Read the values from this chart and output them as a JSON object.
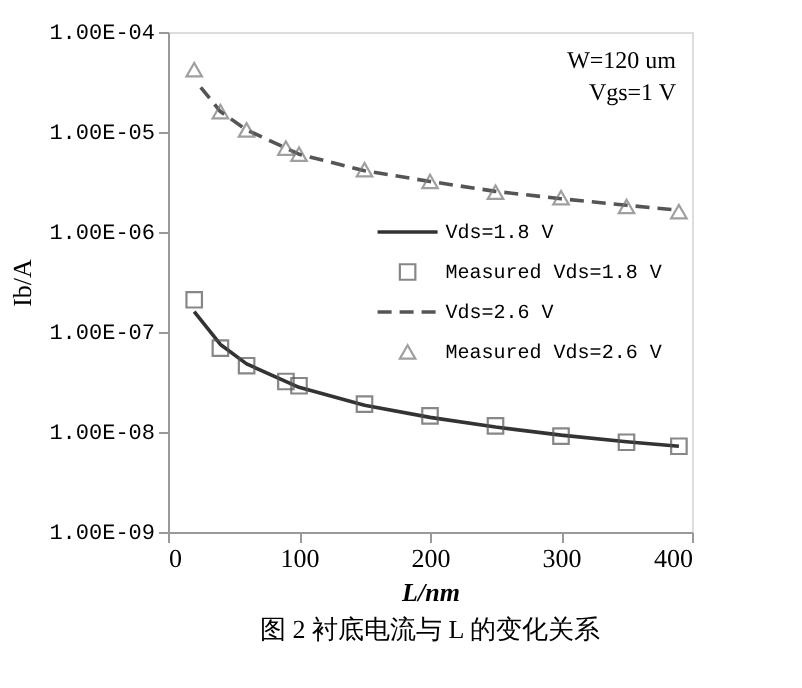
{
  "chart_data": {
    "type": "line",
    "xlabel": "L/nm",
    "ylabel": "Ib/A",
    "log": "y",
    "grid": false,
    "legend": "right",
    "xlim": [
      0,
      400
    ],
    "xticks": [
      0,
      100,
      200,
      300,
      400
    ],
    "ylim": [
      1e-09,
      0.0001
    ],
    "yticks": [
      {
        "value": 1e-09,
        "label": "1.00E-09"
      },
      {
        "value": 1e-08,
        "label": "1.00E-08"
      },
      {
        "value": 1e-07,
        "label": "1.00E-07"
      },
      {
        "value": 1e-06,
        "label": "1.00E-06"
      },
      {
        "value": 1e-05,
        "label": "1.00E-05"
      },
      {
        "value": 0.0001,
        "label": "1.00E-04"
      }
    ],
    "annotations": [
      "W=120 um",
      "Vgs=1 V",
      "图 2  衬底电流与 L 的变化关系"
    ],
    "series": [
      {
        "name": "Vds=1.8 V",
        "line_style": "solid",
        "marker": "none",
        "color": "#333333",
        "x": [
          20,
          40,
          60,
          100,
          150,
          200,
          250,
          300,
          350,
          390
        ],
        "values": [
          1.6e-07,
          7.5e-08,
          4.8e-08,
          2.8e-08,
          1.85e-08,
          1.4e-08,
          1.12e-08,
          9.3e-09,
          8e-09,
          7.2e-09
        ]
      },
      {
        "name": "Measured Vds=1.8 V",
        "type": "scatter",
        "marker": "square",
        "color": "#555555",
        "x": [
          20,
          40,
          60,
          90,
          100,
          150,
          200,
          250,
          300,
          350,
          390
        ],
        "values": [
          2.1e-07,
          6.9e-08,
          4.6e-08,
          3.2e-08,
          2.9e-08,
          1.9e-08,
          1.45e-08,
          1.15e-08,
          9.1e-09,
          7.9e-09,
          7.2e-09
        ]
      },
      {
        "name": "Vds=2.6 V",
        "line_style": "dashed",
        "marker": "none",
        "color": "#555555",
        "x": [
          25,
          40,
          60,
          100,
          150,
          200,
          250,
          300,
          350,
          390
        ],
        "values": [
          2.8e-05,
          1.6e-05,
          1.05e-05,
          6e-06,
          4.1e-06,
          3.2e-06,
          2.55e-06,
          2.15e-06,
          1.85e-06,
          1.65e-06
        ]
      },
      {
        "name": "Measured Vds=2.6 V",
        "type": "scatter",
        "marker": "triangle",
        "color": "#777777",
        "x": [
          20,
          40,
          60,
          90,
          100,
          150,
          200,
          250,
          300,
          350,
          390
        ],
        "values": [
          4.2e-05,
          1.6e-05,
          1.05e-05,
          6.9e-06,
          6e-06,
          4.2e-06,
          3.2e-06,
          2.5e-06,
          2.2e-06,
          1.8e-06,
          1.6e-06
        ]
      }
    ]
  }
}
